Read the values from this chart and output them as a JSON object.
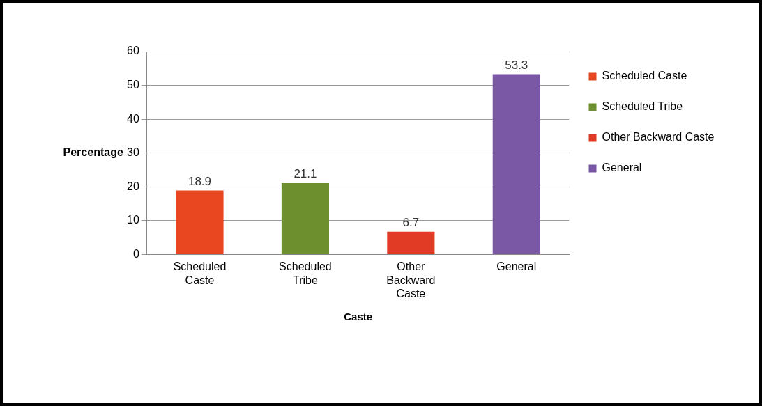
{
  "chart_data": {
    "type": "bar",
    "categories": [
      "Scheduled Caste",
      "Scheduled Tribe",
      "Other Backward Caste",
      "General"
    ],
    "series": [
      {
        "name": "Scheduled Caste",
        "color": "#e8471f",
        "values": [
          18.9,
          null,
          null,
          null
        ]
      },
      {
        "name": "Scheduled Tribe",
        "color": "#6e8f2d",
        "values": [
          null,
          21.1,
          null,
          null
        ]
      },
      {
        "name": "Other Backward Caste",
        "color": "#e23b25",
        "values": [
          null,
          null,
          6.7,
          null
        ]
      },
      {
        "name": "General",
        "color": "#7a58a5",
        "values": [
          null,
          null,
          null,
          53.3
        ]
      }
    ],
    "xlabel": "Caste",
    "ylabel": "Percentage",
    "ylim": [
      0,
      60
    ],
    "yticks": [
      0,
      10,
      20,
      30,
      40,
      50,
      60
    ],
    "grid": "y",
    "legend": "top right",
    "data_labels": true
  }
}
